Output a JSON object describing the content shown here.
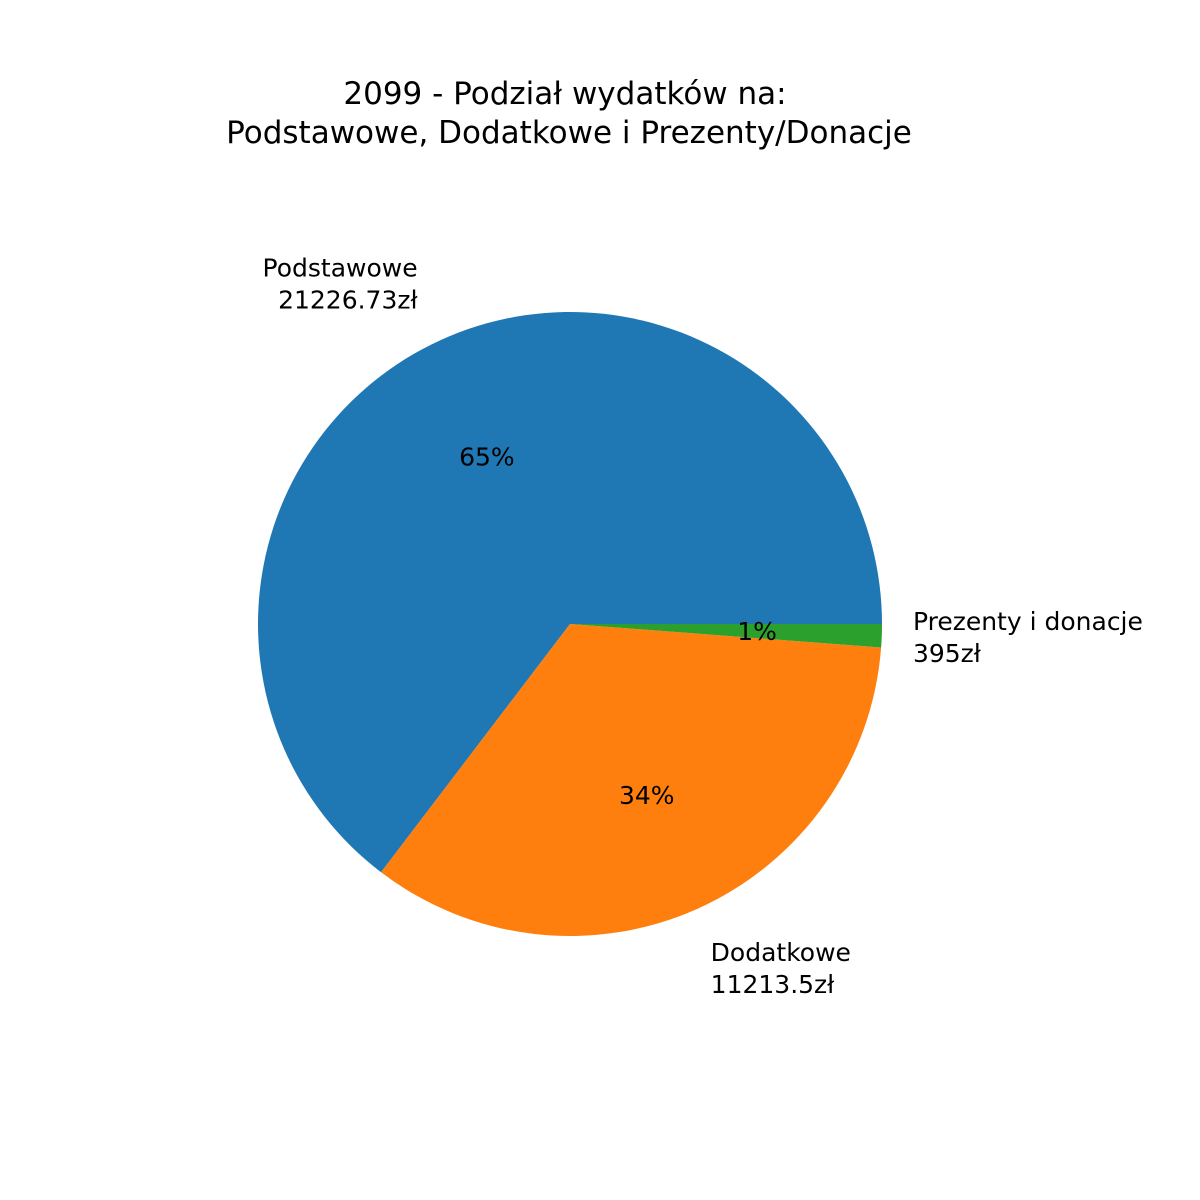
{
  "chart_data": {
    "type": "pie",
    "title_lines": [
      "2099 - Podział wydatków na:",
      "Podstawowe, Dodatkowe i Prezenty/Donacje"
    ],
    "slices": [
      {
        "label": "Podstawowe",
        "value_text": "21226.73zł",
        "value": 21226.73,
        "pct_text": "65%",
        "color": "#1f77b4"
      },
      {
        "label": "Dodatkowe",
        "value_text": "11213.5zł",
        "value": 11213.5,
        "pct_text": "34%",
        "color": "#ff7f0e"
      },
      {
        "label": "Prezenty i donacje",
        "value_text": "395zł",
        "value": 395,
        "pct_text": "1%",
        "color": "#2ca02c"
      }
    ],
    "start_angle_deg": 0,
    "direction": "counterclockwise"
  }
}
